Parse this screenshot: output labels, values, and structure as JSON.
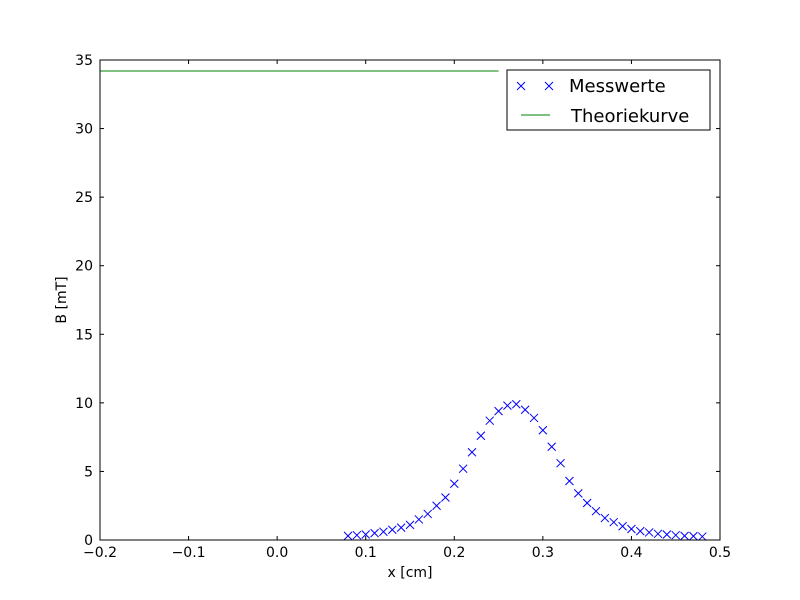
{
  "chart_data": {
    "type": "scatter",
    "title": "",
    "xlabel": "x [cm]",
    "ylabel": "B [mT]",
    "xlim": [
      -0.2,
      0.5
    ],
    "ylim": [
      0,
      35
    ],
    "xticks": [
      -0.2,
      -0.1,
      0.0,
      0.1,
      0.2,
      0.3,
      0.4,
      0.5
    ],
    "xtick_labels": [
      "−0.2",
      "−0.1",
      "0.0",
      "0.1",
      "0.2",
      "0.3",
      "0.4",
      "0.5"
    ],
    "yticks": [
      0,
      5,
      10,
      15,
      20,
      25,
      30,
      35
    ],
    "ytick_labels": [
      "0",
      "5",
      "10",
      "15",
      "20",
      "25",
      "30",
      "35"
    ],
    "grid": false,
    "legend_position": "top-right",
    "series": [
      {
        "name": "Messwerte",
        "kind": "scatter",
        "marker": "x",
        "color": "#0000ff",
        "x": [
          0.08,
          0.09,
          0.1,
          0.11,
          0.12,
          0.13,
          0.14,
          0.15,
          0.16,
          0.17,
          0.18,
          0.19,
          0.2,
          0.21,
          0.22,
          0.23,
          0.24,
          0.25,
          0.26,
          0.27,
          0.28,
          0.29,
          0.3,
          0.31,
          0.32,
          0.33,
          0.34,
          0.35,
          0.36,
          0.37,
          0.38,
          0.39,
          0.4,
          0.41,
          0.42,
          0.43,
          0.44,
          0.45,
          0.46,
          0.47,
          0.48
        ],
        "y": [
          0.3,
          0.35,
          0.4,
          0.5,
          0.6,
          0.75,
          0.9,
          1.1,
          1.5,
          1.9,
          2.5,
          3.1,
          4.1,
          5.2,
          6.4,
          7.6,
          8.7,
          9.4,
          9.8,
          9.9,
          9.5,
          8.9,
          8.0,
          6.8,
          5.6,
          4.3,
          3.4,
          2.7,
          2.1,
          1.6,
          1.3,
          1.0,
          0.8,
          0.65,
          0.55,
          0.45,
          0.4,
          0.35,
          0.3,
          0.28,
          0.25
        ]
      },
      {
        "name": "Theoriekurve",
        "kind": "line",
        "color": "#008000",
        "x": [
          -0.2,
          0.25
        ],
        "y": [
          34.2,
          34.2
        ]
      }
    ]
  }
}
